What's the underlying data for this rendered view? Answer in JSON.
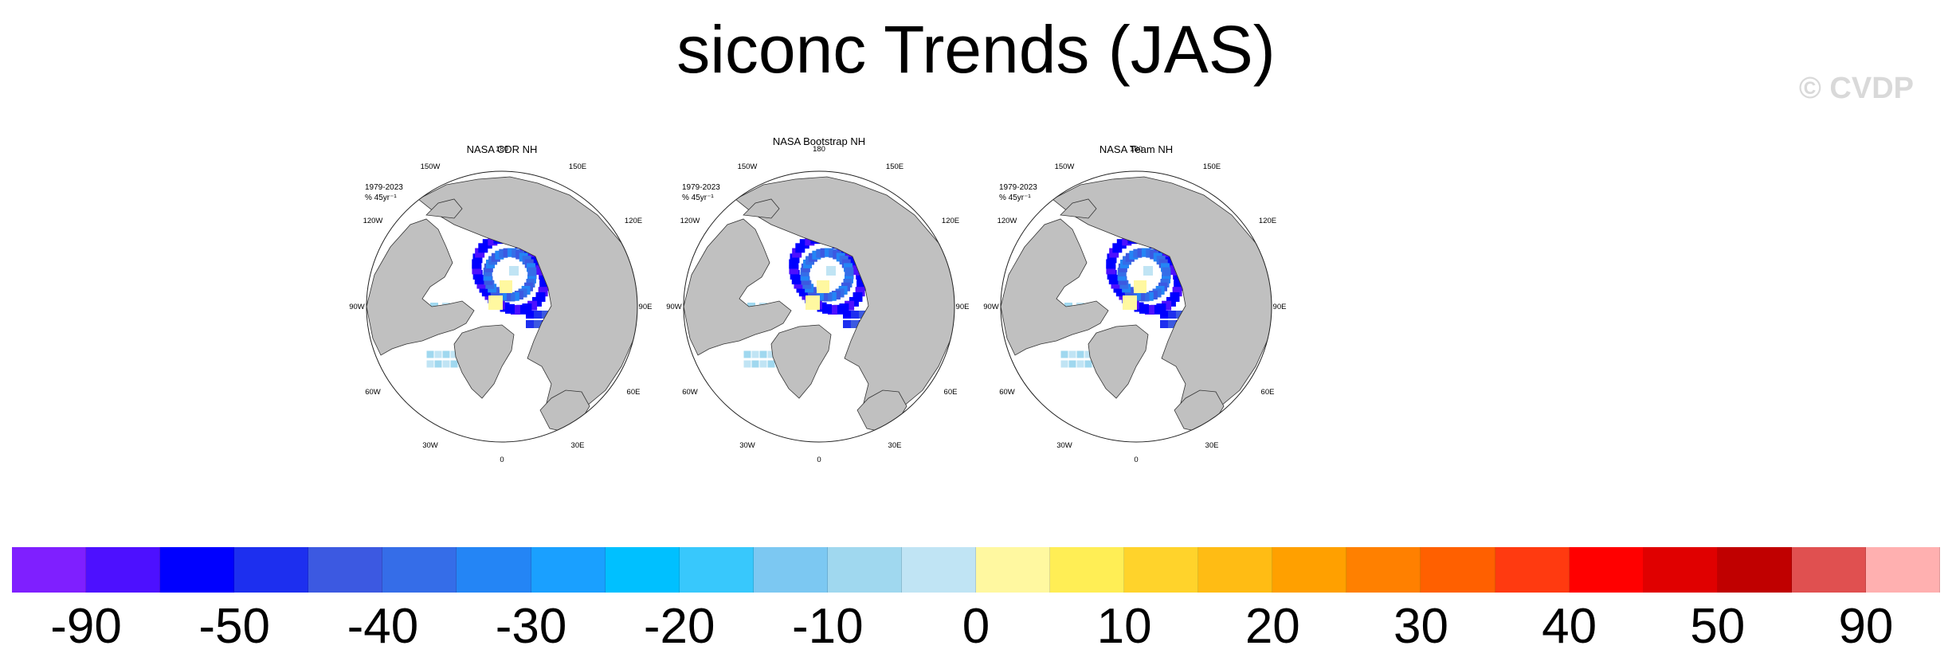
{
  "title": "siconc Trends (JAS)",
  "watermark": "© CVDP",
  "panels": [
    {
      "title": "NASA CDR NH",
      "period": "1979-2023",
      "units": "% 45yr⁻¹"
    },
    {
      "title": "NASA Bootstrap NH",
      "period": "1979-2023",
      "units": "% 45yr⁻¹"
    },
    {
      "title": "NASA Team NH",
      "period": "1979-2023",
      "units": "% 45yr⁻¹"
    }
  ],
  "longitude_labels": {
    "l180": "180",
    "l150W": "150W",
    "l150E": "150E",
    "l120W": "120W",
    "l120E": "120E",
    "l90W": "90W",
    "l90E": "90E",
    "l60W": "60W",
    "l60E": "60E",
    "l30W": "30W",
    "l30E": "30E",
    "l0": "0"
  },
  "colors": {
    "land": "#c0c0c0",
    "ocean": "#ffffff",
    "colorbar": [
      "#7f1fff",
      "#4d10ff",
      "#0000ff",
      "#1d2fef",
      "#3c59e1",
      "#356de8",
      "#2485f5",
      "#1aa0ff",
      "#00c0ff",
      "#38c8fc",
      "#7cc8f2",
      "#a0d8ef",
      "#c0e4f4",
      "#fff8a0",
      "#ffee55",
      "#ffd32b",
      "#ffbc14",
      "#ffa000",
      "#ff8000",
      "#ff6000",
      "#ff3a10",
      "#ff0000",
      "#e00000",
      "#c00000",
      "#e05050",
      "#ffb0b0"
    ]
  },
  "colorbar_labels": [
    "-90",
    "-50",
    "-40",
    "-30",
    "-20",
    "-10",
    "0",
    "10",
    "20",
    "30",
    "40",
    "50",
    "90"
  ]
}
